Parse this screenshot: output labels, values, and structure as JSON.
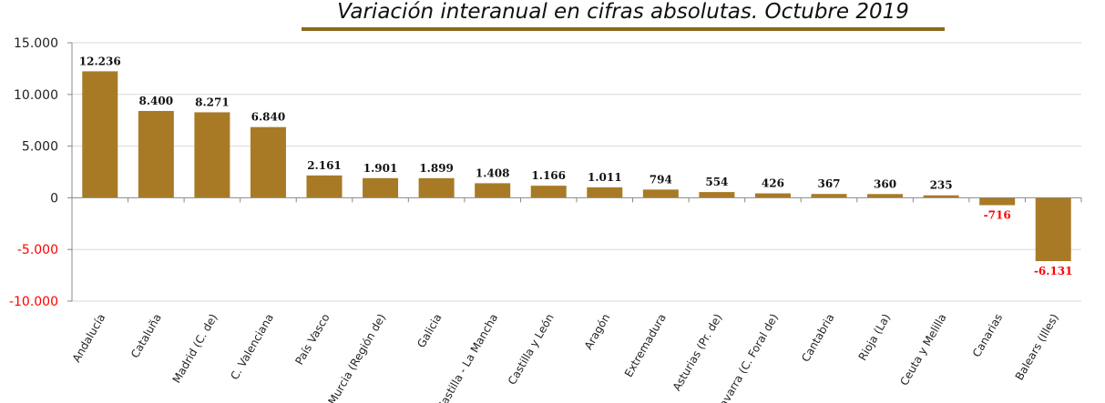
{
  "chart_data": {
    "type": "bar",
    "title": "Variación interanual en cifras absolutas. Octubre 2019",
    "xlabel": "",
    "ylabel": "",
    "ylim": [
      -10000,
      15000
    ],
    "yticks": [
      15000,
      10000,
      5000,
      0,
      -5000,
      -10000
    ],
    "ytick_labels": [
      "15.000",
      "10.000",
      "5.000",
      "0",
      "-5.000",
      "-10.000"
    ],
    "grid": true,
    "categories": [
      "Andalucía",
      "Cataluña",
      "Madrid (C. de)",
      "C. Valenciana",
      "País Vasco",
      "Murcia (Región de)",
      "Galicia",
      "Castilla - La Mancha",
      "Castilla y León",
      "Aragón",
      "Extremadura",
      "Asturias (Pr. de)",
      "Navarra (C. Foral de)",
      "Cantabria",
      "Rioja (La)",
      "Ceuta y Melilla",
      "Canarias",
      "Balears (Illes)"
    ],
    "values": [
      12236,
      8400,
      8271,
      6840,
      2161,
      1901,
      1899,
      1408,
      1166,
      1011,
      794,
      554,
      426,
      367,
      360,
      235,
      -716,
      -6131
    ],
    "value_labels": [
      "12.236",
      "8.400",
      "8.271",
      "6.840",
      "2.161",
      "1.901",
      "1.899",
      "1.408",
      "1.166",
      "1.011",
      "794",
      "554",
      "426",
      "367",
      "360",
      "235",
      "-716",
      "-6.131"
    ],
    "colors": {
      "bar": "#A87A26",
      "negative_label": "#FF0000",
      "grid": "#D9D9D9"
    }
  }
}
